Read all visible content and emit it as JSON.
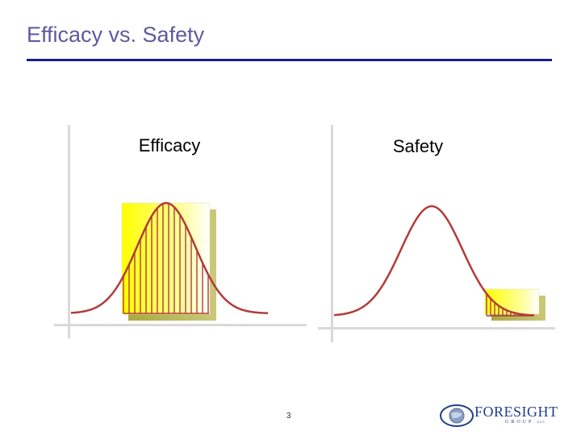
{
  "slide": {
    "title": "Efficacy vs. Safety",
    "page_number": "3"
  },
  "panels": {
    "efficacy": {
      "label": "Efficacy"
    },
    "safety": {
      "label": "Safety"
    }
  },
  "logo": {
    "name": "FORESIGHT",
    "sub": "GROUP",
    "suffix": "LLC"
  },
  "colors": {
    "title": "#5b5b9e",
    "rule": "#1c1c8c",
    "curve": "#b23b3b",
    "highlight": "#ffff00",
    "shadow": "#b8b84a",
    "axis": "#d6d6d6"
  }
}
